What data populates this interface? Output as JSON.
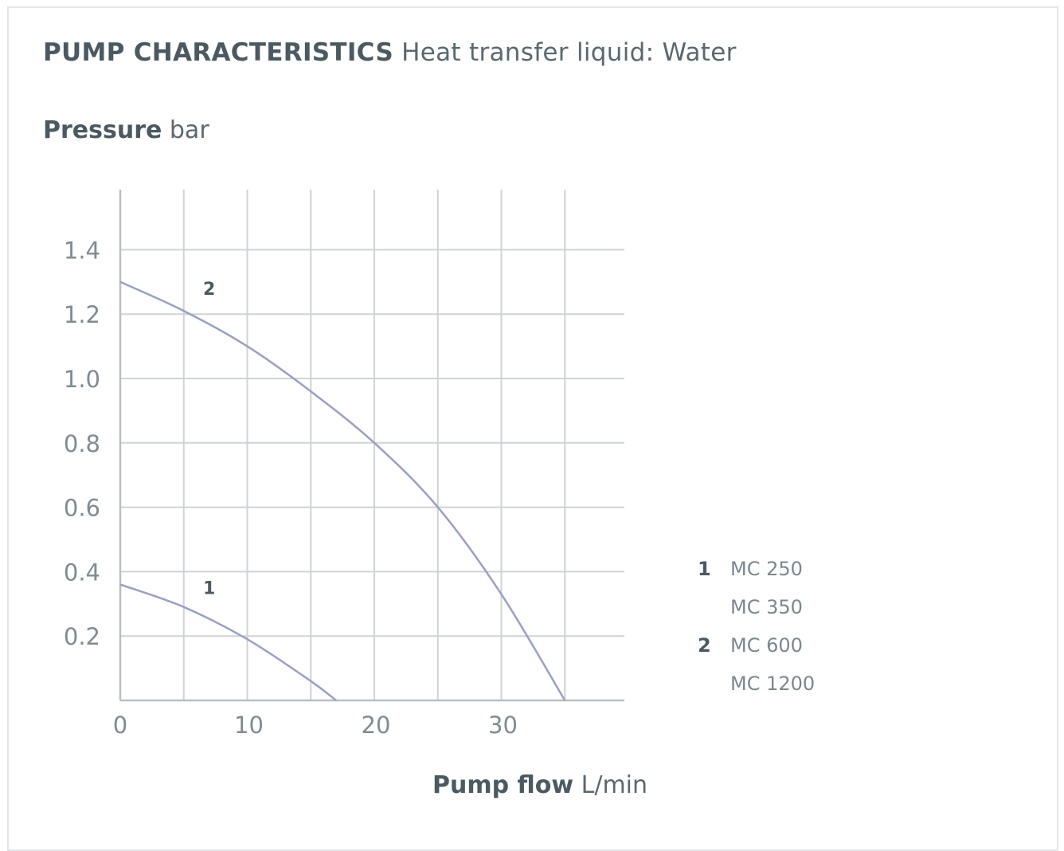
{
  "header": {
    "title_strong": "PUMP CHARACTERISTICS",
    "title_light": "Heat transfer liquid: Water"
  },
  "axes": {
    "y_label_strong": "Pressure",
    "y_label_unit": "bar",
    "x_label_strong": "Pump flow",
    "x_label_unit": "L/min"
  },
  "legend": [
    {
      "num": "1",
      "label": "MC 250"
    },
    {
      "num": "",
      "label": "MC 350"
    },
    {
      "num": "2",
      "label": "MC 600"
    },
    {
      "num": "",
      "label": "MC 1200"
    }
  ],
  "colors": {
    "curve": "#9aa0c4",
    "grid": "#cfd3d6",
    "axis": "#b9bfc3",
    "text_dark": "#4b5962",
    "tick": "#808b92"
  },
  "chart_data": {
    "type": "line",
    "title": "PUMP CHARACTERISTICS Heat transfer liquid: Water",
    "xlabel": "Pump flow L/min",
    "ylabel": "Pressure bar",
    "xlim": [
      0,
      40
    ],
    "ylim": [
      0,
      1.6
    ],
    "x_ticks": [
      "0",
      "10",
      "20",
      "30"
    ],
    "x_tick_values": [
      0,
      10,
      20,
      30
    ],
    "y_ticks": [
      "0.2",
      "0.4",
      "0.6",
      "0.8",
      "1.0",
      "1.2",
      "1.4"
    ],
    "y_tick_values": [
      0.2,
      0.4,
      0.6,
      0.8,
      1.0,
      1.2,
      1.4
    ],
    "x_grid": [
      0,
      5,
      10,
      15,
      20,
      25,
      30,
      35
    ],
    "y_grid": [
      0.2,
      0.4,
      0.6,
      0.8,
      1.0,
      1.2,
      1.4
    ],
    "grid": true,
    "series": [
      {
        "name": "1",
        "x": [
          0,
          5,
          10,
          15,
          17
        ],
        "y": [
          0.36,
          0.29,
          0.19,
          0.06,
          0.0
        ]
      },
      {
        "name": "2",
        "x": [
          0,
          5,
          10,
          15,
          20,
          25,
          30,
          35
        ],
        "y": [
          1.3,
          1.21,
          1.1,
          0.96,
          0.8,
          0.6,
          0.33,
          0.0
        ]
      }
    ],
    "curve_labels": [
      {
        "text": "1",
        "x": 7,
        "y": 0.33
      },
      {
        "text": "2",
        "x": 7,
        "y": 1.26
      }
    ]
  }
}
